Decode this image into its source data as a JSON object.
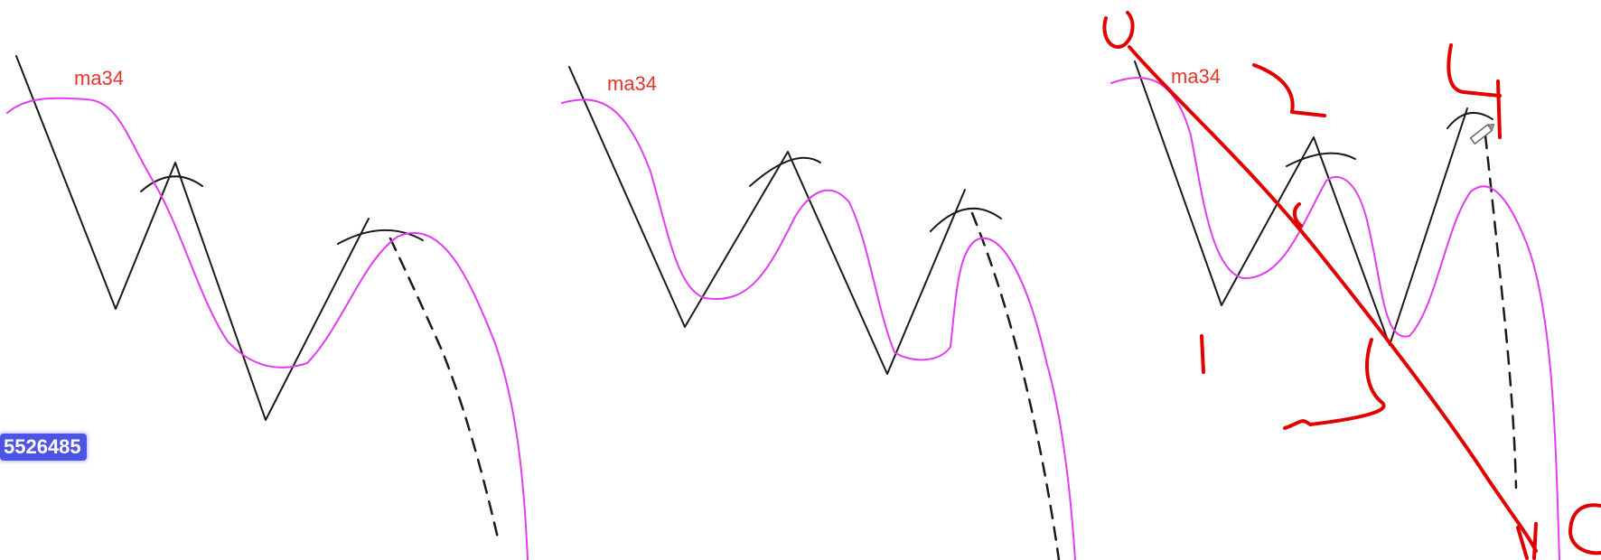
{
  "panels": [
    {
      "ma_label": "ma34"
    },
    {
      "ma_label": "ma34"
    },
    {
      "ma_label": "ma34"
    }
  ],
  "badge": {
    "text": "5526485"
  },
  "colors": {
    "price_line": "#1a1a1a",
    "ma_line": "#e23cf0",
    "annotation": "#e00000",
    "label": "#e8352b",
    "badge_bg": "#4c54e6"
  },
  "icons": [
    "pen-cursor-icon"
  ]
}
